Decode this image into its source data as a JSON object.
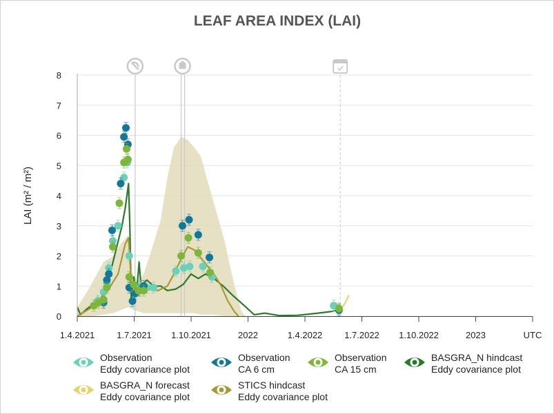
{
  "chart_data": {
    "type": "line",
    "title": "LEAF AREA INDEX (LAI)",
    "ylabel": "LAI (m² / m²)",
    "ylim": [
      0,
      8
    ],
    "yticks": [
      "0",
      "1",
      "2",
      "3",
      "4",
      "5",
      "6",
      "7",
      "8"
    ],
    "xticks": [
      "1.4.2021",
      "1.7.2021",
      "1.10.2021",
      "2022",
      "1.4.2022",
      "1.7.2022",
      "1.10.2022",
      "2023",
      "UTC"
    ],
    "grid": true,
    "legend_position": "bottom",
    "event_markers": [
      {
        "icon": "mowing-icon",
        "date": "2021-06-27"
      },
      {
        "icon": "fertilizer-icon",
        "date": "2021-09-05"
      },
      {
        "icon": "calendar-today-icon",
        "date": "2022-05-05"
      }
    ],
    "series": [
      {
        "name": "Observation",
        "sub": "Eddy covariance plot",
        "color": "#6ccfb8",
        "kind": "observation",
        "points": [
          [
            "2021-05-01",
            0.5
          ],
          [
            "2021-05-10",
            0.8
          ],
          [
            "2021-05-15",
            1.1
          ],
          [
            "2021-05-18",
            1.6
          ],
          [
            "2021-05-24",
            2.5
          ],
          [
            "2021-06-01",
            3.0
          ],
          [
            "2021-06-10",
            4.6
          ],
          [
            "2021-06-15",
            5.1
          ],
          [
            "2021-06-18",
            2.0
          ],
          [
            "2021-07-05",
            1.0
          ],
          [
            "2021-07-15",
            0.95
          ],
          [
            "2021-07-25",
            0.95
          ],
          [
            "2021-08-28",
            1.5
          ],
          [
            "2021-09-09",
            1.6
          ],
          [
            "2021-09-18",
            1.65
          ],
          [
            "2021-10-08",
            1.65
          ],
          [
            "2021-10-22",
            1.3
          ],
          [
            "2022-04-25",
            0.35
          ],
          [
            "2022-05-03",
            0.25
          ]
        ]
      },
      {
        "name": "Observation",
        "sub": "CA 6 cm",
        "color": "#137799",
        "kind": "observation",
        "points": [
          [
            "2021-05-10",
            0.45
          ],
          [
            "2021-05-15",
            1.2
          ],
          [
            "2021-05-18",
            1.4
          ],
          [
            "2021-05-23",
            2.85
          ],
          [
            "2021-06-05",
            4.4
          ],
          [
            "2021-06-10",
            5.95
          ],
          [
            "2021-06-13",
            6.25
          ],
          [
            "2021-06-16",
            5.7
          ],
          [
            "2021-06-18",
            0.95
          ],
          [
            "2021-06-23",
            0.5
          ],
          [
            "2021-06-27",
            0.75
          ],
          [
            "2021-07-03",
            0.85
          ],
          [
            "2021-07-10",
            1.0
          ],
          [
            "2021-09-07",
            3.0
          ],
          [
            "2021-09-17",
            3.2
          ],
          [
            "2021-10-01",
            2.7
          ],
          [
            "2021-10-18",
            1.95
          ],
          [
            "2022-05-03",
            0.2
          ]
        ]
      },
      {
        "name": "Observation",
        "sub": "CA 15 cm",
        "color": "#7db63a",
        "kind": "observation",
        "points": [
          [
            "2021-04-25",
            0.35
          ],
          [
            "2021-05-02",
            0.45
          ],
          [
            "2021-05-10",
            0.55
          ],
          [
            "2021-05-15",
            0.95
          ],
          [
            "2021-05-24",
            2.3
          ],
          [
            "2021-06-03",
            3.75
          ],
          [
            "2021-06-10",
            5.1
          ],
          [
            "2021-06-14",
            5.55
          ],
          [
            "2021-06-16",
            5.2
          ],
          [
            "2021-06-18",
            1.3
          ],
          [
            "2021-06-25",
            1.05
          ],
          [
            "2021-07-02",
            0.85
          ],
          [
            "2021-07-10",
            0.85
          ],
          [
            "2021-09-05",
            2.0
          ],
          [
            "2021-09-16",
            2.6
          ],
          [
            "2021-10-01",
            2.1
          ],
          [
            "2021-10-19",
            1.45
          ],
          [
            "2022-05-03",
            0.25
          ]
        ]
      },
      {
        "name": "BASGRA_N hindcast",
        "sub": "Eddy covariance plot",
        "color": "#2a7a2a",
        "kind": "line",
        "points": [
          [
            "2021-03-31",
            0.3
          ],
          [
            "2021-04-05",
            0.05
          ],
          [
            "2021-04-15",
            0.25
          ],
          [
            "2021-04-25",
            0.4
          ],
          [
            "2021-05-05",
            0.55
          ],
          [
            "2021-05-15",
            0.95
          ],
          [
            "2021-05-22",
            1.6
          ],
          [
            "2021-05-30",
            2.3
          ],
          [
            "2021-06-07",
            3.0
          ],
          [
            "2021-06-12",
            3.6
          ],
          [
            "2021-06-17",
            4.4
          ],
          [
            "2021-06-19",
            3.0
          ],
          [
            "2021-06-21",
            0.6
          ],
          [
            "2021-06-25",
            1.3
          ],
          [
            "2021-06-29",
            0.7
          ],
          [
            "2021-07-03",
            1.8
          ],
          [
            "2021-07-06",
            1.0
          ],
          [
            "2021-07-15",
            1.2
          ],
          [
            "2021-07-25",
            1.0
          ],
          [
            "2021-08-05",
            1.0
          ],
          [
            "2021-08-15",
            0.85
          ],
          [
            "2021-08-28",
            0.9
          ],
          [
            "2021-09-08",
            1.05
          ],
          [
            "2021-09-20",
            1.4
          ],
          [
            "2021-10-01",
            1.25
          ],
          [
            "2021-10-12",
            1.4
          ],
          [
            "2021-10-25",
            1.25
          ],
          [
            "2021-11-08",
            1.0
          ],
          [
            "2021-11-22",
            0.7
          ],
          [
            "2021-12-10",
            0.35
          ],
          [
            "2021-12-25",
            0.05
          ],
          [
            "2022-01-10",
            0.1
          ],
          [
            "2022-02-01",
            0.02
          ],
          [
            "2022-03-01",
            0.03
          ],
          [
            "2022-04-01",
            0.1
          ],
          [
            "2022-04-20",
            0.15
          ],
          [
            "2022-05-01",
            0.2
          ],
          [
            "2022-05-05",
            0.25
          ]
        ]
      },
      {
        "name": "BASGRA_N forecast",
        "sub": "Eddy covariance plot",
        "color": "#e3d46e",
        "kind": "line",
        "points": [
          [
            "2022-05-05",
            0.25
          ],
          [
            "2022-05-10",
            0.35
          ],
          [
            "2022-05-15",
            0.55
          ],
          [
            "2022-05-18",
            0.7
          ]
        ]
      },
      {
        "name": "STICS hindcast",
        "sub": "Eddy covariance plot",
        "color": "#a79a35",
        "kind": "line",
        "band_color": "#e2dcba",
        "points": [
          [
            "2021-03-31",
            0.0
          ],
          [
            "2021-04-15",
            0.2
          ],
          [
            "2021-05-01",
            0.4
          ],
          [
            "2021-05-15",
            0.8
          ],
          [
            "2021-06-01",
            1.4
          ],
          [
            "2021-06-12",
            2.4
          ],
          [
            "2021-06-17",
            2.6
          ],
          [
            "2021-06-22",
            0.8
          ],
          [
            "2021-07-01",
            1.0
          ],
          [
            "2021-07-15",
            0.9
          ],
          [
            "2021-08-01",
            0.85
          ],
          [
            "2021-08-15",
            1.0
          ],
          [
            "2021-08-25",
            1.4
          ],
          [
            "2021-09-05",
            1.9
          ],
          [
            "2021-09-15",
            2.3
          ],
          [
            "2021-09-25",
            2.2
          ],
          [
            "2021-10-10",
            1.8
          ],
          [
            "2021-10-25",
            1.4
          ],
          [
            "2021-11-05",
            1.0
          ],
          [
            "2021-11-15",
            0.5
          ],
          [
            "2021-11-25",
            0.15
          ],
          [
            "2021-12-01",
            0.0
          ]
        ],
        "band": [
          [
            "2021-03-31",
            0.0,
            0.3
          ],
          [
            "2021-04-20",
            0.0,
            1.0
          ],
          [
            "2021-05-10",
            0.05,
            1.8
          ],
          [
            "2021-05-25",
            0.1,
            2.0
          ],
          [
            "2021-06-05",
            0.2,
            2.4
          ],
          [
            "2021-06-17",
            0.3,
            2.7
          ],
          [
            "2021-06-25",
            0.2,
            1.0
          ],
          [
            "2021-07-10",
            0.1,
            1.4
          ],
          [
            "2021-07-25",
            0.1,
            2.4
          ],
          [
            "2021-08-05",
            0.1,
            3.2
          ],
          [
            "2021-08-15",
            0.1,
            4.6
          ],
          [
            "2021-08-25",
            0.1,
            5.6
          ],
          [
            "2021-09-05",
            0.1,
            5.95
          ],
          [
            "2021-09-15",
            0.1,
            5.85
          ],
          [
            "2021-09-25",
            0.1,
            5.6
          ],
          [
            "2021-10-05",
            0.05,
            5.3
          ],
          [
            "2021-10-15",
            0.05,
            4.5
          ],
          [
            "2021-10-28",
            0.05,
            3.5
          ],
          [
            "2021-11-10",
            0.0,
            2.5
          ],
          [
            "2021-11-22",
            0.0,
            1.3
          ],
          [
            "2021-12-05",
            0.0,
            0.2
          ],
          [
            "2021-12-12",
            0.0,
            0.0
          ]
        ]
      }
    ]
  },
  "legend": [
    {
      "line1": "Observation",
      "line2": "Eddy covariance plot",
      "color": "#6ccfb8",
      "icon": "eye-icon"
    },
    {
      "line1": "Observation",
      "line2": "CA 6 cm",
      "color": "#137799",
      "icon": "eye-icon"
    },
    {
      "line1": "Observation",
      "line2": "CA 15 cm",
      "color": "#7db63a",
      "icon": "eye-icon"
    },
    {
      "line1": "BASGRA_N hindcast",
      "line2": "Eddy covariance plot",
      "color": "#2a7a2a",
      "icon": "eye-icon"
    },
    {
      "line1": "BASGRA_N forecast",
      "line2": "Eddy covariance plot",
      "color": "#e3d46e",
      "icon": "eye-icon"
    },
    {
      "line1": "STICS hindcast",
      "line2": "Eddy covariance plot",
      "color": "#a79a35",
      "icon": "eye-icon"
    }
  ]
}
